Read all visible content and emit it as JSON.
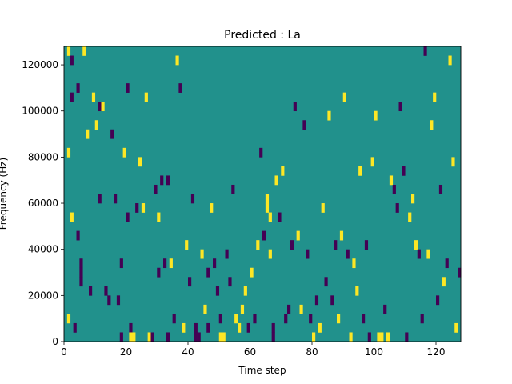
{
  "chart_data": {
    "type": "heatmap",
    "title": "Predicted : La",
    "xlabel": "Time step",
    "ylabel": "Frequency (Hz)",
    "xlim": [
      0,
      128
    ],
    "ylim": [
      0,
      128000
    ],
    "x_ticks": [
      0,
      20,
      40,
      60,
      80,
      100,
      120
    ],
    "y_ticks": [
      0,
      20000,
      40000,
      60000,
      80000,
      100000,
      120000
    ],
    "x_tick_labels": [
      "0",
      "20",
      "40",
      "60",
      "80",
      "100",
      "120"
    ],
    "y_tick_labels": [
      "0",
      "20000",
      "40000",
      "60000",
      "80000",
      "100000",
      "120000"
    ],
    "grid": false,
    "colormap": "viridis",
    "levels": {
      "low": "#440154",
      "mid": "#21918c",
      "high": "#fde725"
    },
    "background_level": "mid",
    "cell_height": 4000,
    "notes": "Cells are [time_step, frequency_bin_start_Hz, level]; level 1 = yellow (high), -1 = dark purple (low); all other cells are mid (teal).",
    "cells": [
      [
        1,
        124000,
        1
      ],
      [
        1,
        80000,
        1
      ],
      [
        1,
        8000,
        1
      ],
      [
        2,
        120000,
        -1
      ],
      [
        2,
        104000,
        -1
      ],
      [
        2,
        52000,
        1
      ],
      [
        3,
        4000,
        -1
      ],
      [
        4,
        108000,
        -1
      ],
      [
        4,
        44000,
        -1
      ],
      [
        5,
        32000,
        -1
      ],
      [
        5,
        28000,
        -1
      ],
      [
        5,
        24000,
        -1
      ],
      [
        6,
        124000,
        1
      ],
      [
        7,
        88000,
        1
      ],
      [
        8,
        20000,
        -1
      ],
      [
        9,
        104000,
        1
      ],
      [
        10,
        92000,
        1
      ],
      [
        11,
        100000,
        -1
      ],
      [
        11,
        60000,
        -1
      ],
      [
        12,
        100000,
        1
      ],
      [
        13,
        20000,
        -1
      ],
      [
        14,
        16000,
        -1
      ],
      [
        15,
        88000,
        -1
      ],
      [
        16,
        60000,
        -1
      ],
      [
        17,
        16000,
        -1
      ],
      [
        18,
        0,
        -1
      ],
      [
        18,
        32000,
        -1
      ],
      [
        19,
        80000,
        1
      ],
      [
        20,
        108000,
        -1
      ],
      [
        20,
        52000,
        -1
      ],
      [
        21,
        4000,
        -1
      ],
      [
        21,
        0,
        1
      ],
      [
        22,
        0,
        1
      ],
      [
        23,
        56000,
        -1
      ],
      [
        24,
        76000,
        1
      ],
      [
        25,
        56000,
        1
      ],
      [
        26,
        104000,
        1
      ],
      [
        27,
        0,
        1
      ],
      [
        28,
        0,
        -1
      ],
      [
        29,
        64000,
        -1
      ],
      [
        30,
        52000,
        1
      ],
      [
        30,
        28000,
        -1
      ],
      [
        31,
        68000,
        -1
      ],
      [
        32,
        32000,
        -1
      ],
      [
        33,
        0,
        -1
      ],
      [
        33,
        68000,
        -1
      ],
      [
        34,
        32000,
        1
      ],
      [
        35,
        8000,
        -1
      ],
      [
        36,
        120000,
        1
      ],
      [
        37,
        108000,
        -1
      ],
      [
        38,
        4000,
        1
      ],
      [
        39,
        40000,
        1
      ],
      [
        40,
        24000,
        -1
      ],
      [
        41,
        60000,
        -1
      ],
      [
        42,
        4000,
        -1
      ],
      [
        42,
        0,
        -1
      ],
      [
        43,
        0,
        -1
      ],
      [
        44,
        36000,
        1
      ],
      [
        45,
        12000,
        1
      ],
      [
        46,
        28000,
        -1
      ],
      [
        46,
        4000,
        -1
      ],
      [
        47,
        56000,
        1
      ],
      [
        48,
        32000,
        -1
      ],
      [
        49,
        20000,
        -1
      ],
      [
        50,
        8000,
        -1
      ],
      [
        50,
        0,
        1
      ],
      [
        51,
        0,
        1
      ],
      [
        52,
        36000,
        -1
      ],
      [
        53,
        24000,
        -1
      ],
      [
        54,
        64000,
        -1
      ],
      [
        55,
        8000,
        1
      ],
      [
        56,
        4000,
        1
      ],
      [
        57,
        12000,
        1
      ],
      [
        58,
        20000,
        1
      ],
      [
        59,
        4000,
        -1
      ],
      [
        60,
        28000,
        1
      ],
      [
        61,
        8000,
        -1
      ],
      [
        62,
        40000,
        1
      ],
      [
        63,
        80000,
        -1
      ],
      [
        64,
        44000,
        -1
      ],
      [
        65,
        60000,
        1
      ],
      [
        65,
        56000,
        1
      ],
      [
        66,
        52000,
        1
      ],
      [
        66,
        36000,
        1
      ],
      [
        67,
        0,
        -1
      ],
      [
        67,
        4000,
        -1
      ],
      [
        68,
        68000,
        1
      ],
      [
        69,
        52000,
        -1
      ],
      [
        70,
        72000,
        1
      ],
      [
        71,
        8000,
        -1
      ],
      [
        72,
        12000,
        -1
      ],
      [
        73,
        40000,
        -1
      ],
      [
        74,
        100000,
        -1
      ],
      [
        75,
        44000,
        1
      ],
      [
        76,
        12000,
        1
      ],
      [
        77,
        92000,
        -1
      ],
      [
        78,
        36000,
        -1
      ],
      [
        79,
        8000,
        -1
      ],
      [
        80,
        0,
        1
      ],
      [
        81,
        16000,
        -1
      ],
      [
        82,
        4000,
        1
      ],
      [
        83,
        56000,
        1
      ],
      [
        84,
        24000,
        -1
      ],
      [
        85,
        96000,
        1
      ],
      [
        86,
        16000,
        -1
      ],
      [
        87,
        40000,
        -1
      ],
      [
        88,
        8000,
        1
      ],
      [
        89,
        44000,
        1
      ],
      [
        90,
        104000,
        1
      ],
      [
        91,
        36000,
        -1
      ],
      [
        92,
        0,
        1
      ],
      [
        93,
        32000,
        1
      ],
      [
        94,
        20000,
        1
      ],
      [
        95,
        72000,
        1
      ],
      [
        96,
        8000,
        -1
      ],
      [
        97,
        40000,
        -1
      ],
      [
        98,
        0,
        -1
      ],
      [
        99,
        76000,
        1
      ],
      [
        100,
        96000,
        1
      ],
      [
        101,
        0,
        1
      ],
      [
        102,
        0,
        1
      ],
      [
        103,
        12000,
        -1
      ],
      [
        104,
        0,
        1
      ],
      [
        105,
        68000,
        1
      ],
      [
        106,
        64000,
        -1
      ],
      [
        107,
        56000,
        -1
      ],
      [
        108,
        100000,
        -1
      ],
      [
        109,
        72000,
        -1
      ],
      [
        110,
        0,
        -1
      ],
      [
        111,
        52000,
        1
      ],
      [
        112,
        60000,
        1
      ],
      [
        113,
        40000,
        1
      ],
      [
        114,
        36000,
        -1
      ],
      [
        115,
        8000,
        -1
      ],
      [
        116,
        124000,
        -1
      ],
      [
        117,
        36000,
        1
      ],
      [
        118,
        92000,
        1
      ],
      [
        119,
        104000,
        1
      ],
      [
        120,
        16000,
        -1
      ],
      [
        121,
        64000,
        -1
      ],
      [
        122,
        24000,
        1
      ],
      [
        123,
        32000,
        -1
      ],
      [
        124,
        120000,
        1
      ],
      [
        125,
        76000,
        1
      ],
      [
        126,
        4000,
        1
      ],
      [
        127,
        28000,
        -1
      ]
    ]
  }
}
